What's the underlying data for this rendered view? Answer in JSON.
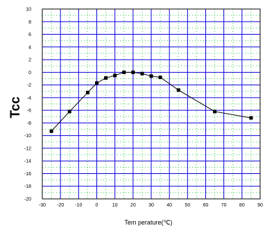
{
  "chart_data": {
    "type": "line",
    "title": "",
    "xlabel": "Tem perature(℃)",
    "ylabel": "Tcc",
    "xlim": [
      -30,
      90
    ],
    "ylim": [
      -20,
      10
    ],
    "x_ticks": [
      -30,
      -20,
      -10,
      0,
      10,
      20,
      30,
      40,
      50,
      60,
      70,
      80,
      90
    ],
    "y_ticks": [
      10,
      8,
      6,
      4,
      2,
      0,
      -2,
      -4,
      -6,
      -8,
      -10,
      -12,
      -14,
      -16,
      -18,
      -20
    ],
    "grid": true,
    "legend": "none",
    "colors": {
      "major_grid": "#0a00d8",
      "minor_grid": "#2ecc40",
      "line": "#000000",
      "background": "#ffffff"
    },
    "series": [
      {
        "x": [
          -25,
          -15,
          -5,
          0,
          5,
          10,
          15,
          20,
          25,
          30,
          35,
          45,
          65,
          85
        ],
        "y": [
          -9.3,
          -6.2,
          -3.2,
          -1.7,
          -0.9,
          -0.5,
          0.0,
          0.0,
          -0.2,
          -0.6,
          -0.8,
          -2.8,
          -6.2,
          -7.2
        ]
      }
    ]
  }
}
